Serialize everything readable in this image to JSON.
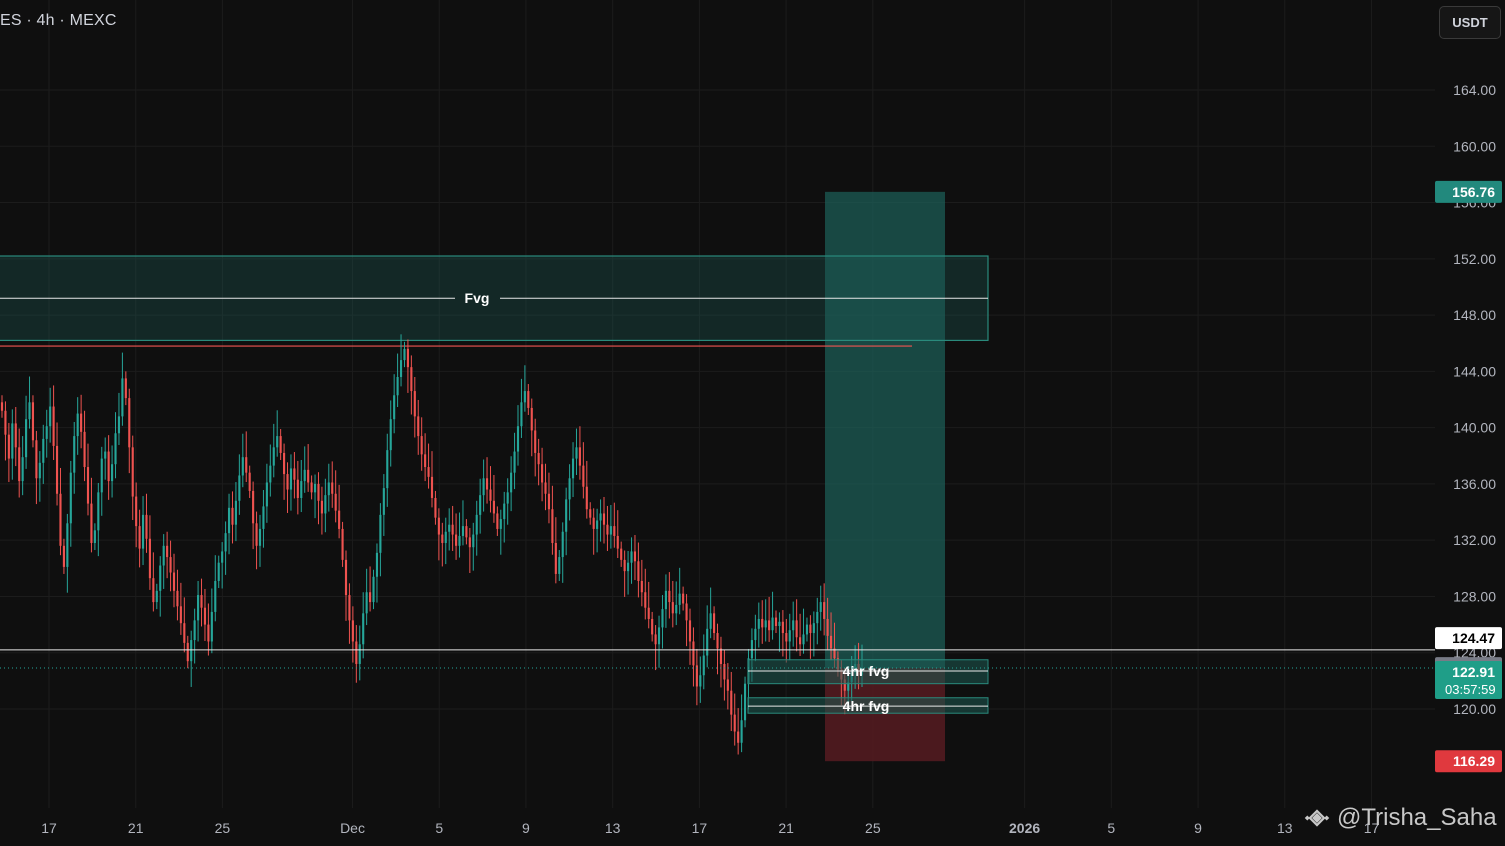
{
  "header": {
    "symbol_text": "ES · 4h · MEXC",
    "currency_label": "USDT"
  },
  "watermark": {
    "handle": "@Trisha_Saha",
    "icon": "binance-logo-icon"
  },
  "colors": {
    "background": "#0f0f0f",
    "up": "#26a69a",
    "down": "#ef5350",
    "profit_zone": "#1c5c55",
    "loss_zone": "#5a1c22",
    "grid": "#1c1c1c"
  },
  "chart_data": {
    "type": "candlestick",
    "timeframe": "4h",
    "exchange": "MEXC",
    "quote_currency": "USDT",
    "price_axis": {
      "ticks": [
        "164.00",
        "160.00",
        "156.00",
        "152.00",
        "148.00",
        "144.00",
        "140.00",
        "136.00",
        "132.00",
        "128.00",
        "124.00",
        "120.00"
      ],
      "range": [
        112.5,
        169.5
      ]
    },
    "time_axis": {
      "ticks": [
        {
          "label": "17",
          "date": "2025-11-17"
        },
        {
          "label": "21",
          "date": "2025-11-21"
        },
        {
          "label": "25",
          "date": "2025-11-25"
        },
        {
          "label": "Dec",
          "date": "2025-12-01"
        },
        {
          "label": "5",
          "date": "2025-12-05"
        },
        {
          "label": "9",
          "date": "2025-12-09"
        },
        {
          "label": "13",
          "date": "2025-12-13"
        },
        {
          "label": "17",
          "date": "2025-12-17"
        },
        {
          "label": "21",
          "date": "2025-12-21"
        },
        {
          "label": "25",
          "date": "2025-12-25"
        },
        {
          "label": "2026",
          "date": "2026-01-01",
          "bold": true
        },
        {
          "label": "5",
          "date": "2026-01-05"
        },
        {
          "label": "9",
          "date": "2026-01-09"
        },
        {
          "label": "13",
          "date": "2026-01-13"
        },
        {
          "label": "17",
          "date": "2026-01-17"
        }
      ]
    },
    "closes": [
      141.2,
      139.5,
      137.8,
      140.3,
      138.6,
      136.2,
      137.9,
      140.6,
      141.8,
      139.1,
      136.4,
      137.5,
      139.2,
      140.1,
      141.5,
      138.7,
      135.3,
      131.6,
      130.1,
      133.2,
      136.8,
      139.4,
      141.0,
      139.7,
      137.2,
      134.6,
      131.8,
      132.7,
      135.4,
      137.8,
      138.3,
      136.2,
      137.4,
      139.6,
      140.8,
      143.5,
      142.1,
      138.6,
      135.1,
      133.0,
      131.4,
      133.8,
      132.1,
      129.3,
      127.6,
      128.4,
      130.2,
      131.6,
      130.8,
      129.7,
      128.4,
      127.3,
      126.1,
      124.7,
      123.4,
      124.9,
      126.3,
      128.1,
      127.2,
      126.0,
      124.8,
      126.9,
      129.1,
      130.4,
      131.2,
      132.5,
      134.3,
      133.1,
      134.8,
      136.6,
      137.9,
      136.8,
      135.5,
      133.2,
      131.6,
      132.8,
      134.4,
      136.1,
      137.3,
      138.6,
      139.4,
      138.2,
      136.7,
      135.6,
      137.1,
      136.3,
      135.0,
      136.2,
      137.0,
      136.1,
      135.4,
      136.0,
      134.8,
      133.9,
      135.2,
      136.1,
      135.3,
      134.1,
      132.8,
      130.6,
      128.1,
      126.3,
      124.8,
      123.2,
      124.6,
      126.8,
      128.3,
      127.6,
      129.4,
      131.1,
      133.8,
      135.7,
      138.4,
      140.6,
      142.3,
      143.6,
      144.8,
      145.6,
      144.3,
      142.6,
      140.8,
      139.4,
      138.1,
      137.2,
      136.5,
      135.0,
      133.6,
      132.4,
      131.8,
      132.6,
      133.1,
      132.4,
      131.6,
      132.3,
      133.0,
      132.2,
      131.5,
      132.4,
      133.8,
      135.2,
      136.4,
      135.6,
      134.8,
      133.9,
      132.8,
      133.5,
      134.6,
      135.4,
      136.8,
      138.3,
      140.1,
      141.8,
      142.6,
      141.4,
      139.8,
      138.2,
      137.4,
      136.1,
      135.3,
      134.2,
      131.8,
      129.6,
      130.8,
      132.6,
      134.9,
      136.4,
      137.8,
      138.6,
      137.3,
      135.8,
      134.2,
      133.6,
      132.8,
      133.4,
      133.9,
      133.1,
      132.4,
      133.0,
      132.3,
      131.4,
      130.6,
      129.8,
      130.4,
      131.2,
      130.5,
      129.1,
      128.3,
      127.2,
      126.4,
      125.3,
      124.6,
      125.8,
      127.1,
      128.4,
      127.6,
      126.8,
      127.4,
      128.2,
      127.5,
      126.3,
      124.8,
      123.1,
      121.6,
      122.4,
      123.8,
      125.7,
      126.8,
      125.4,
      124.3,
      123.2,
      122.1,
      121.3,
      119.6,
      118.4,
      117.6,
      119.2,
      121.8,
      123.6,
      124.9,
      125.7,
      126.4,
      125.8,
      126.3,
      125.6,
      126.5,
      125.9,
      126.2,
      125.4,
      124.8,
      125.6,
      126.3,
      125.1,
      124.6,
      125.3,
      126.0,
      125.4,
      126.1,
      126.9,
      127.6,
      126.4,
      125.2,
      124.3,
      123.6,
      122.8,
      122.1,
      121.3,
      121.9,
      122.6,
      123.2,
      122.4,
      122.91
    ],
    "candles_note_drawn_from_closes": true,
    "drawings": {
      "fvg_zone": {
        "label": "Fvg",
        "top": 152.2,
        "bottom": 146.2,
        "mid": 149.2
      },
      "resistance_line": {
        "price": 145.8
      },
      "fvg_4h_upper": {
        "label": "4hr fvg",
        "top": 123.5,
        "bottom": 121.8,
        "mid": 122.7
      },
      "fvg_4h_lower": {
        "label": "4hr fvg",
        "top": 120.8,
        "bottom": 119.7,
        "mid": 120.2
      },
      "long_position": {
        "take_profit": 156.76,
        "entry": 122.91,
        "stop_loss": 116.29
      },
      "horizontal_line": {
        "price": 124.2
      }
    },
    "price_tags": [
      {
        "value": "156.76",
        "kind": "tp"
      },
      {
        "value": "124.47",
        "kind": "white"
      },
      {
        "value": "123.19",
        "kind": "gray"
      },
      {
        "value": "122.91",
        "kind": "current",
        "countdown": "03:57:59"
      },
      {
        "value": "116.29",
        "kind": "sl"
      }
    ],
    "grid": true
  }
}
